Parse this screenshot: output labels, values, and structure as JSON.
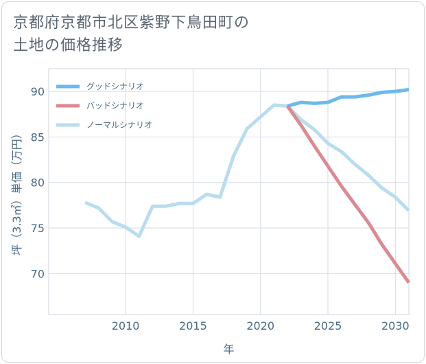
{
  "title_line1": "京都府京都市北区紫野下鳥田町の",
  "title_line2": "土地の価格推移",
  "chart_data": {
    "type": "line",
    "title": "京都府京都市北区紫野下鳥田町の土地の価格推移",
    "xlabel": "年",
    "ylabel": "坪（3.3㎡）単価（万円）",
    "xlim": [
      2004.3,
      2031
    ],
    "ylim": [
      65.5,
      92.5
    ],
    "xticks": [
      2010,
      2015,
      2020,
      2025,
      2030
    ],
    "yticks": [
      70,
      75,
      80,
      85,
      90
    ],
    "grid": true,
    "legend_position": "top-left",
    "series": [
      {
        "name": "グッドシナリオ",
        "color": "#6cb9ed",
        "x": [
          2022,
          2023,
          2024,
          2025,
          2026,
          2027,
          2028,
          2029,
          2030,
          2031
        ],
        "values": [
          88.4,
          88.8,
          88.7,
          88.8,
          89.4,
          89.4,
          89.6,
          89.9,
          90.0,
          90.2
        ]
      },
      {
        "name": "バッドシナリオ",
        "color": "#dc8a92",
        "x": [
          2022,
          2023,
          2024,
          2025,
          2026,
          2027,
          2028,
          2029,
          2030,
          2031
        ],
        "values": [
          88.4,
          86.3,
          84.0,
          81.8,
          79.6,
          77.6,
          75.6,
          73.2,
          71.1,
          69.0
        ]
      },
      {
        "name": "ノーマルシナリオ",
        "color": "#b9ddef",
        "x": [
          2007,
          2008,
          2009,
          2010,
          2011,
          2012,
          2013,
          2014,
          2015,
          2016,
          2017,
          2018,
          2019,
          2020,
          2021,
          2022,
          2023,
          2024,
          2025,
          2026,
          2027,
          2028,
          2029,
          2030,
          2031
        ],
        "values": [
          77.8,
          77.2,
          75.7,
          75.1,
          74.1,
          77.4,
          77.4,
          77.7,
          77.7,
          78.7,
          78.4,
          82.9,
          85.9,
          87.2,
          88.5,
          88.4,
          86.9,
          85.8,
          84.3,
          83.4,
          82.0,
          80.8,
          79.4,
          78.4,
          76.9
        ]
      }
    ]
  }
}
